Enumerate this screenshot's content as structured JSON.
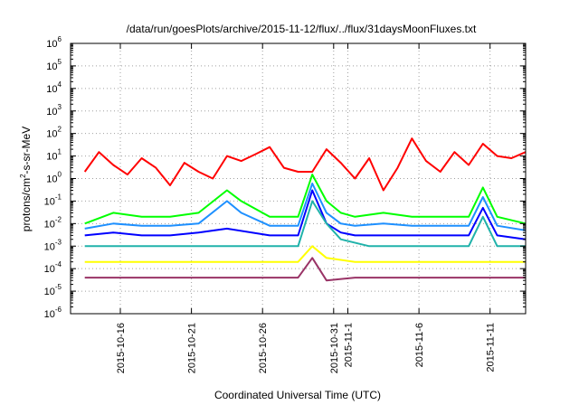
{
  "chart_data": {
    "type": "line",
    "title": "/data/run/goesPlots/archive/2015-11-12/flux/../flux/31daysMoonFluxes.txt",
    "xlabel": "Coordinated Universal Time (UTC)",
    "ylabel": {
      "base": "protons/cm",
      "sup": "2",
      "rest": "-s-sr-MeV"
    },
    "xlim": [
      "2015-10-12T12:00",
      "2015-11-13T12:00"
    ],
    "ylim": [
      1e-06,
      1000000.0
    ],
    "yscale": "log",
    "grid": true,
    "x_ticks": [
      {
        "date": "2015-10-16",
        "label": "2015-10-16"
      },
      {
        "date": "2015-10-21",
        "label": "2015-10-21"
      },
      {
        "date": "2015-10-26",
        "label": "2015-10-26"
      },
      {
        "date": "2015-10-31",
        "label": "2015-10-31"
      },
      {
        "date": "2015-11-01",
        "label": "2015-11-1"
      },
      {
        "date": "2015-11-06",
        "label": "2015-11-6"
      },
      {
        "date": "2015-11-11",
        "label": "2015-11-11"
      }
    ],
    "y_ticks": [
      {
        "value": 1e-06,
        "base": "10",
        "exp": "-6"
      },
      {
        "value": 1e-05,
        "base": "10",
        "exp": "-5"
      },
      {
        "value": 0.0001,
        "base": "10",
        "exp": "-4"
      },
      {
        "value": 0.001,
        "base": "10",
        "exp": "-3"
      },
      {
        "value": 0.01,
        "base": "10",
        "exp": "-2"
      },
      {
        "value": 0.1,
        "base": "10",
        "exp": "-1"
      },
      {
        "value": 1,
        "base": "10",
        "exp": "0"
      },
      {
        "value": 10.0,
        "base": "10",
        "exp": "1"
      },
      {
        "value": 100.0,
        "base": "10",
        "exp": "2"
      },
      {
        "value": 1000.0,
        "base": "10",
        "exp": "3"
      },
      {
        "value": 10000.0,
        "base": "10",
        "exp": "4"
      },
      {
        "value": 100000.0,
        "base": "10",
        "exp": "5"
      },
      {
        "value": 1000000.0,
        "base": "10",
        "exp": "6"
      }
    ],
    "series": [
      {
        "color": "#ff0000",
        "x": [
          "2015-10-13",
          "2015-10-14",
          "2015-10-15",
          "2015-10-16",
          "2015-10-17",
          "2015-10-18",
          "2015-10-19",
          "2015-10-20",
          "2015-10-21",
          "2015-10-22",
          "2015-10-23",
          "2015-10-24",
          "2015-10-25",
          "2015-10-26",
          "2015-10-27",
          "2015-10-28",
          "2015-10-29",
          "2015-10-30",
          "2015-10-31",
          "2015-11-01",
          "2015-11-02",
          "2015-11-03",
          "2015-11-04",
          "2015-11-05",
          "2015-11-06",
          "2015-11-07",
          "2015-11-08",
          "2015-11-09",
          "2015-11-10",
          "2015-11-11",
          "2015-11-12",
          "2015-11-13"
        ],
        "y": [
          2,
          15,
          4,
          1.5,
          8,
          3,
          0.5,
          5,
          2,
          1,
          10,
          6,
          12,
          25,
          3,
          2,
          2,
          20,
          5,
          1,
          8,
          0.3,
          3,
          60,
          6,
          2,
          15,
          4,
          35,
          10,
          8,
          15
        ]
      },
      {
        "color": "#00ff00",
        "x": [
          "2015-10-13",
          "2015-10-15",
          "2015-10-17",
          "2015-10-19",
          "2015-10-21",
          "2015-10-23",
          "2015-10-24",
          "2015-10-26",
          "2015-10-28",
          "2015-10-29",
          "2015-10-30",
          "2015-10-31",
          "2015-11-01",
          "2015-11-03",
          "2015-11-05",
          "2015-11-07",
          "2015-11-09",
          "2015-11-10",
          "2015-11-11",
          "2015-11-13"
        ],
        "y": [
          0.01,
          0.03,
          0.02,
          0.02,
          0.03,
          0.3,
          0.1,
          0.02,
          0.02,
          1.5,
          0.1,
          0.03,
          0.02,
          0.03,
          0.02,
          0.02,
          0.02,
          0.4,
          0.02,
          0.01
        ]
      },
      {
        "color": "#1e90ff",
        "x": [
          "2015-10-13",
          "2015-10-15",
          "2015-10-17",
          "2015-10-19",
          "2015-10-21",
          "2015-10-23",
          "2015-10-24",
          "2015-10-26",
          "2015-10-28",
          "2015-10-29",
          "2015-10-30",
          "2015-10-31",
          "2015-11-01",
          "2015-11-03",
          "2015-11-05",
          "2015-11-07",
          "2015-11-09",
          "2015-11-10",
          "2015-11-11",
          "2015-11-13"
        ],
        "y": [
          0.006,
          0.01,
          0.008,
          0.008,
          0.01,
          0.1,
          0.03,
          0.008,
          0.008,
          0.6,
          0.03,
          0.01,
          0.008,
          0.01,
          0.008,
          0.008,
          0.008,
          0.15,
          0.008,
          0.005
        ]
      },
      {
        "color": "#0000ff",
        "x": [
          "2015-10-13",
          "2015-10-15",
          "2015-10-17",
          "2015-10-19",
          "2015-10-21",
          "2015-10-23",
          "2015-10-26",
          "2015-10-28",
          "2015-10-29",
          "2015-10-30",
          "2015-10-31",
          "2015-11-01",
          "2015-11-03",
          "2015-11-05",
          "2015-11-07",
          "2015-11-09",
          "2015-11-10",
          "2015-11-11",
          "2015-11-13"
        ],
        "y": [
          0.003,
          0.004,
          0.003,
          0.003,
          0.004,
          0.006,
          0.003,
          0.003,
          0.3,
          0.01,
          0.004,
          0.003,
          0.003,
          0.003,
          0.003,
          0.003,
          0.05,
          0.003,
          0.002
        ]
      },
      {
        "color": "#20b2aa",
        "x": [
          "2015-10-13",
          "2015-10-17",
          "2015-10-21",
          "2015-10-25",
          "2015-10-28",
          "2015-10-29",
          "2015-10-30",
          "2015-10-31",
          "2015-11-02",
          "2015-11-06",
          "2015-11-09",
          "2015-11-10",
          "2015-11-11",
          "2015-11-13"
        ],
        "y": [
          0.001,
          0.001,
          0.001,
          0.001,
          0.001,
          0.1,
          0.01,
          0.002,
          0.001,
          0.001,
          0.001,
          0.02,
          0.001,
          0.001
        ]
      },
      {
        "color": "#ffff00",
        "x": [
          "2015-10-13",
          "2015-10-17",
          "2015-10-21",
          "2015-10-25",
          "2015-10-28",
          "2015-10-29",
          "2015-10-30",
          "2015-11-01",
          "2015-11-05",
          "2015-11-09",
          "2015-11-13"
        ],
        "y": [
          0.0002,
          0.0002,
          0.0002,
          0.0002,
          0.0002,
          0.001,
          0.0003,
          0.0002,
          0.0002,
          0.0002,
          0.0002
        ]
      },
      {
        "color": "#993366",
        "x": [
          "2015-10-13",
          "2015-10-17",
          "2015-10-21",
          "2015-10-25",
          "2015-10-28",
          "2015-10-29",
          "2015-10-30",
          "2015-11-01",
          "2015-11-05",
          "2015-11-09",
          "2015-11-13"
        ],
        "y": [
          4e-05,
          4e-05,
          4e-05,
          4e-05,
          4e-05,
          0.0003,
          3e-05,
          4e-05,
          4e-05,
          4e-05,
          4e-05
        ]
      }
    ]
  }
}
